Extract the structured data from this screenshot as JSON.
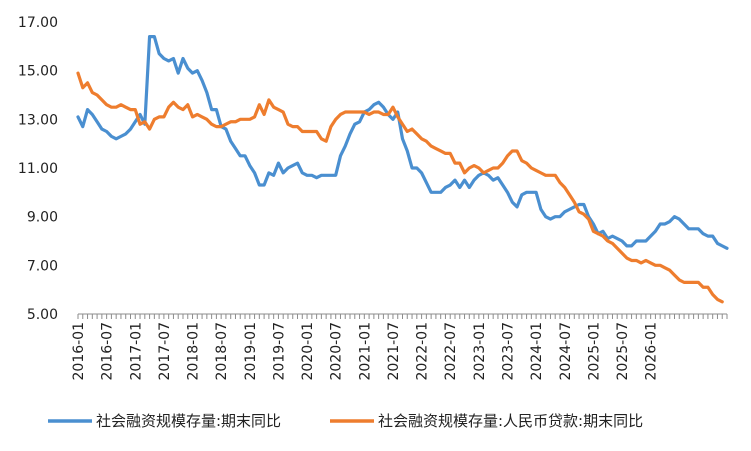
{
  "chart_data": {
    "type": "line",
    "title": "",
    "xlabel": "",
    "ylabel": "",
    "ylim": [
      5.0,
      17.0
    ],
    "yticks": [
      "5.00",
      "7.00",
      "9.00",
      "11.00",
      "13.00",
      "15.00",
      "17.00"
    ],
    "x_start": "2016-01",
    "x_labels": [
      "2016-01",
      "2016-07",
      "2017-01",
      "2017-07",
      "2018-01",
      "2018-07",
      "2019-01",
      "2019-07",
      "2020-01",
      "2020-07",
      "2021-01",
      "2021-07",
      "2022-01",
      "2022-07",
      "2023-01",
      "2023-07",
      "2024-01",
      "2024-07",
      "2025-01",
      "2025-07",
      "2026-01"
    ],
    "grid": false,
    "legend_position": "bottom",
    "series": [
      {
        "name": "社会融资规模存量:期末同比",
        "color": "#4a8fd0",
        "values": [
          13.1,
          12.7,
          13.4,
          13.2,
          12.9,
          12.6,
          12.5,
          12.3,
          12.2,
          12.3,
          12.4,
          12.6,
          12.9,
          13.2,
          12.8,
          16.4,
          16.4,
          15.7,
          15.5,
          15.4,
          15.5,
          14.9,
          15.5,
          15.1,
          14.9,
          15.0,
          14.6,
          14.1,
          13.4,
          13.4,
          12.7,
          12.6,
          12.1,
          11.8,
          11.5,
          11.5,
          11.1,
          10.8,
          10.3,
          10.3,
          10.8,
          10.7,
          11.2,
          10.8,
          11.0,
          11.1,
          11.2,
          10.8,
          10.7,
          10.7,
          10.6,
          10.7,
          10.7,
          10.7,
          10.7,
          11.5,
          11.9,
          12.4,
          12.8,
          12.9,
          13.3,
          13.4,
          13.6,
          13.7,
          13.5,
          13.2,
          13.0,
          13.3,
          12.2,
          11.7,
          11.0,
          11.0,
          10.8,
          10.4,
          10.0,
          10.0,
          10.0,
          10.2,
          10.3,
          10.5,
          10.2,
          10.5,
          10.2,
          10.5,
          10.7,
          10.8,
          10.7,
          10.5,
          10.6,
          10.3,
          10.0,
          9.6,
          9.4,
          9.9,
          10.0,
          10.0,
          10.0,
          9.3,
          9.0,
          8.9,
          9.0,
          9.0,
          9.2,
          9.3,
          9.4,
          9.5,
          9.5,
          9.0,
          8.7,
          8.3,
          8.4,
          8.1,
          8.2,
          8.1,
          8.0,
          7.8,
          7.8,
          8.0,
          8.0,
          8.0,
          8.2,
          8.4,
          8.7,
          8.7,
          8.8,
          9.0,
          8.9,
          8.7,
          8.5,
          8.5,
          8.5,
          8.3,
          8.2,
          8.2,
          7.9,
          7.8,
          7.7
        ]
      },
      {
        "name": "社会融资规模存量:人民币贷款:期末同比",
        "color": "#ee7d2e",
        "values": [
          14.9,
          14.3,
          14.5,
          14.1,
          14.0,
          13.8,
          13.6,
          13.5,
          13.5,
          13.6,
          13.5,
          13.4,
          13.4,
          12.8,
          12.9,
          12.6,
          13.0,
          13.1,
          13.1,
          13.5,
          13.7,
          13.5,
          13.4,
          13.6,
          13.1,
          13.2,
          13.1,
          13.0,
          12.8,
          12.7,
          12.7,
          12.8,
          12.9,
          12.9,
          13.0,
          13.0,
          13.0,
          13.1,
          13.6,
          13.2,
          13.8,
          13.5,
          13.4,
          13.3,
          12.8,
          12.7,
          12.7,
          12.5,
          12.5,
          12.5,
          12.5,
          12.2,
          12.1,
          12.7,
          13.0,
          13.2,
          13.3,
          13.3,
          13.3,
          13.3,
          13.3,
          13.2,
          13.3,
          13.3,
          13.2,
          13.2,
          13.5,
          13.1,
          12.8,
          12.5,
          12.6,
          12.4,
          12.2,
          12.1,
          11.9,
          11.8,
          11.7,
          11.6,
          11.6,
          11.2,
          11.2,
          10.8,
          11.0,
          11.1,
          11.0,
          10.8,
          10.9,
          11.0,
          11.0,
          11.2,
          11.5,
          11.7,
          11.7,
          11.3,
          11.2,
          11.0,
          10.9,
          10.8,
          10.7,
          10.7,
          10.7,
          10.4,
          10.2,
          9.9,
          9.6,
          9.2,
          9.1,
          8.9,
          8.4,
          8.3,
          8.2,
          8.0,
          7.9,
          7.7,
          7.5,
          7.3,
          7.2,
          7.2,
          7.1,
          7.2,
          7.1,
          7.0,
          7.0,
          6.9,
          6.8,
          6.6,
          6.4,
          6.3,
          6.3,
          6.3,
          6.3,
          6.1,
          6.1,
          5.8,
          5.6,
          5.5
        ]
      }
    ]
  }
}
